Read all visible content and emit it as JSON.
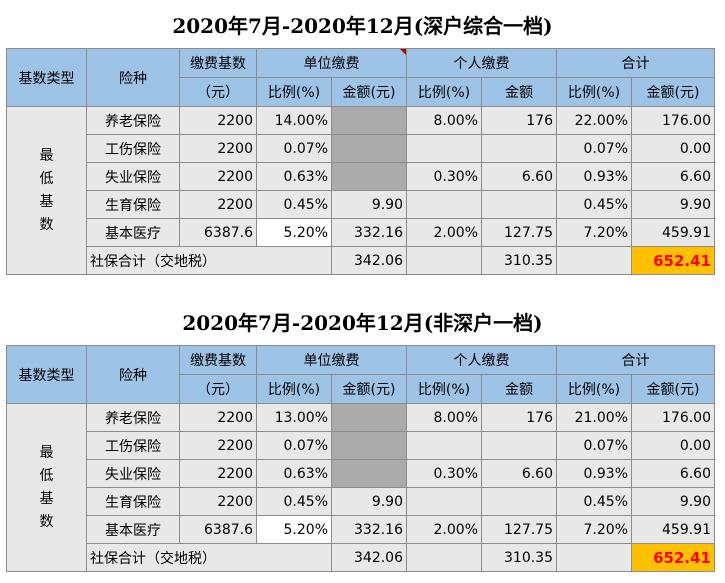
{
  "tables": [
    {
      "title": "2020年7月-2020年12月(深户综合一档)",
      "header": {
        "base_type": "基数类型",
        "insurance_type": "险种",
        "base_line1": "缴费基数",
        "base_line2": "（元）",
        "unit": "单位缴费",
        "personal": "个人缴费",
        "total": "合计",
        "ratio": "比例(%)",
        "amount_yuan": "金额(元)",
        "amount": "金额"
      },
      "category_chars": [
        "最",
        "低",
        "基",
        "数"
      ],
      "rows": [
        {
          "name": "养老保险",
          "base": "2200",
          "unit_ratio": "14.00%",
          "unit_amount": "",
          "personal_ratio": "8.00%",
          "personal_amount": "176",
          "total_ratio": "22.00%",
          "total_amount": "176.00"
        },
        {
          "name": "工伤保险",
          "base": "2200",
          "unit_ratio": "0.07%",
          "unit_amount": "",
          "personal_ratio": "",
          "personal_amount": "",
          "total_ratio": "0.07%",
          "total_amount": "0.00"
        },
        {
          "name": "失业保险",
          "base": "2200",
          "unit_ratio": "0.63%",
          "unit_amount": "",
          "personal_ratio": "0.30%",
          "personal_amount": "6.60",
          "total_ratio": "0.93%",
          "total_amount": "6.60"
        },
        {
          "name": "生育保险",
          "base": "2200",
          "unit_ratio": "0.45%",
          "unit_amount": "9.90",
          "personal_ratio": "",
          "personal_amount": "",
          "total_ratio": "0.45%",
          "total_amount": "9.90"
        },
        {
          "name": "基本医疗",
          "base": "6387.6",
          "unit_ratio": "5.20%",
          "unit_amount": "332.16",
          "personal_ratio": "2.00%",
          "personal_amount": "127.75",
          "total_ratio": "7.20%",
          "total_amount": "459.91"
        }
      ],
      "summary": {
        "label": "社保合计（交地税）",
        "unit_amount": "342.06",
        "personal_amount": "310.35",
        "grand_total": "652.41"
      }
    },
    {
      "title": "2020年7月-2020年12月(非深户一档)",
      "header": {
        "base_type": "基数类型",
        "insurance_type": "险种",
        "base_line1": "缴费基数",
        "base_line2": "（元）",
        "unit": "单位缴费",
        "personal": "个人缴费",
        "total": "合计",
        "ratio": "比例(%)",
        "amount_yuan": "金额(元)",
        "amount": "金额"
      },
      "category_chars": [
        "最",
        "低",
        "基",
        "数"
      ],
      "rows": [
        {
          "name": "养老保险",
          "base": "2200",
          "unit_ratio": "13.00%",
          "unit_amount": "",
          "personal_ratio": "8.00%",
          "personal_amount": "176",
          "total_ratio": "21.00%",
          "total_amount": "176.00"
        },
        {
          "name": "工伤保险",
          "base": "2200",
          "unit_ratio": "0.07%",
          "unit_amount": "",
          "personal_ratio": "",
          "personal_amount": "",
          "total_ratio": "0.07%",
          "total_amount": "0.00"
        },
        {
          "name": "失业保险",
          "base": "2200",
          "unit_ratio": "0.63%",
          "unit_amount": "",
          "personal_ratio": "0.30%",
          "personal_amount": "6.60",
          "total_ratio": "0.93%",
          "total_amount": "6.60"
        },
        {
          "name": "生育保险",
          "base": "2200",
          "unit_ratio": "0.45%",
          "unit_amount": "9.90",
          "personal_ratio": "",
          "personal_amount": "",
          "total_ratio": "0.45%",
          "total_amount": "9.90"
        },
        {
          "name": "基本医疗",
          "base": "6387.6",
          "unit_ratio": "5.20%",
          "unit_amount": "332.16",
          "personal_ratio": "2.00%",
          "personal_amount": "127.75",
          "total_ratio": "7.20%",
          "total_amount": "459.91"
        }
      ],
      "summary": {
        "label": "社保合计（交地税）",
        "unit_amount": "342.06",
        "personal_amount": "310.35",
        "grand_total": "652.41"
      }
    }
  ],
  "colors": {
    "header_blue": "#9dc3e6",
    "body_gray": "#e8e8e8",
    "blocked_gray": "#ababab",
    "total_highlight": "#ffc000",
    "total_text": "#ff0000"
  }
}
